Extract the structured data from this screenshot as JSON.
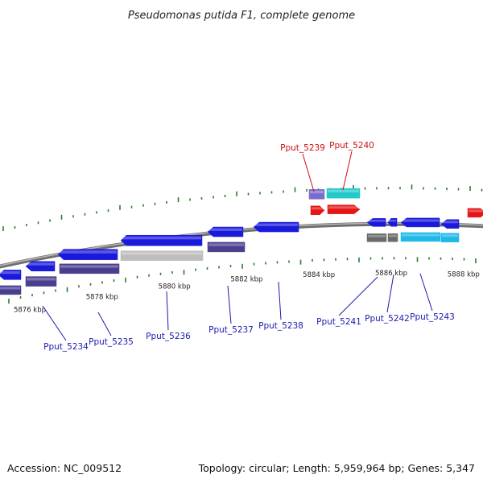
{
  "title": "Pseudomonas putida F1, complete genome",
  "footer": {
    "accession": "Accession: NC_009512",
    "summary": "Topology: circular; Length: 5,959,964 bp; Genes: 5,347"
  },
  "colors": {
    "backbone": "#8a8a8a",
    "tick": "#2d7a2d",
    "blue_gene": "#1a1adc",
    "navy_gene": "#4a3f8f",
    "grey_gene": "#bdbdbd",
    "dark_grey_gene": "#6a6a6a",
    "cyan_gene": "#1fb9e8",
    "teal_gene": "#22c9c9",
    "purple_gene": "#7a6ccf",
    "red_gene": "#e61515",
    "label_blue": "#1a1ab0",
    "label_red": "#cc1010"
  },
  "coordinate_labels": [
    {
      "text": "5876 kbp",
      "pos": 5876.0
    },
    {
      "text": "5878 kbp",
      "pos": 5878.0
    },
    {
      "text": "5880 kbp",
      "pos": 5880.0
    },
    {
      "text": "5882 kbp",
      "pos": 5882.0
    },
    {
      "text": "5884 kbp",
      "pos": 5884.0
    },
    {
      "text": "5886 kbp",
      "pos": 5886.0
    },
    {
      "text": "5888 kbp",
      "pos": 5888.0
    }
  ],
  "genes": [
    {
      "label": "Pput_5234",
      "color": "label_blue"
    },
    {
      "label": "Pput_5235",
      "color": "label_blue"
    },
    {
      "label": "Pput_5236",
      "color": "label_blue"
    },
    {
      "label": "Pput_5237",
      "color": "label_blue"
    },
    {
      "label": "Pput_5238",
      "color": "label_blue"
    },
    {
      "label": "Pput_5239",
      "color": "label_red"
    },
    {
      "label": "Pput_5240",
      "color": "label_red"
    },
    {
      "label": "Pput_5241",
      "color": "label_blue"
    },
    {
      "label": "Pput_5242",
      "color": "label_blue"
    },
    {
      "label": "Pput_5243",
      "color": "label_blue"
    }
  ]
}
